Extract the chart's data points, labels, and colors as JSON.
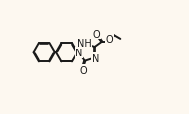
{
  "background_color": "#fdf8f0",
  "line_color": "#1a1a1a",
  "line_width": 1.4,
  "font_size": 7.0,
  "figsize": [
    1.89,
    1.15
  ],
  "dpi": 100,
  "xlim": [
    -0.5,
    10.5
  ],
  "ylim": [
    0.2,
    6.0
  ]
}
